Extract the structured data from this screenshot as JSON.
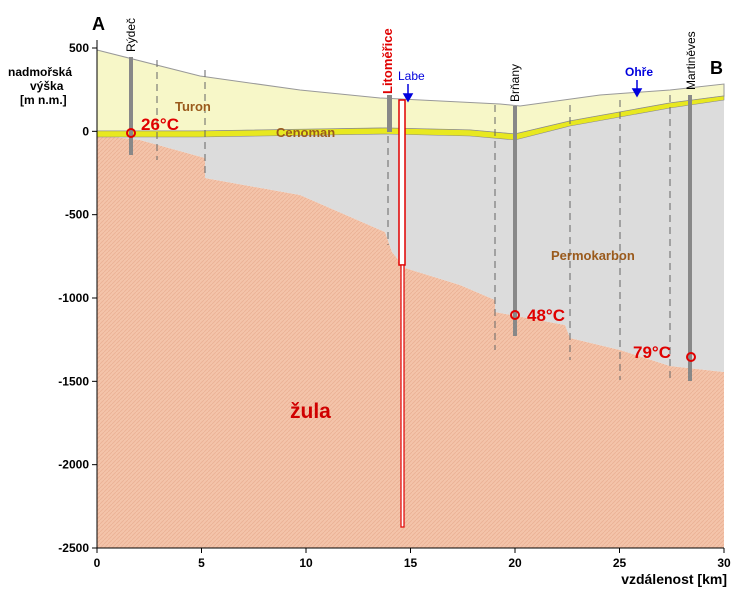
{
  "corners": {
    "start": "A",
    "end": "B"
  },
  "axes": {
    "ylabel": [
      "nadmořská",
      "výška",
      "[m n.m.]"
    ],
    "xlabel": "vzdálenost [km]",
    "xlim": [
      0,
      30
    ],
    "xticks": [
      0,
      5,
      10,
      15,
      20,
      25,
      30
    ],
    "ylim": [
      -2500,
      500
    ],
    "yticks": [
      -2500,
      -2000,
      -1500,
      -1000,
      -500,
      0,
      500
    ]
  },
  "wells": [
    "Rýdeč",
    "Litoměřice",
    "Brňany",
    "Martiněves"
  ],
  "rivers": [
    "Labe",
    "Ohře"
  ],
  "layers": [
    "Turon",
    "Cenoman",
    "Permokarbon",
    "žula"
  ],
  "temperatures": [
    "26°C",
    "48°C",
    "79°C"
  ]
}
